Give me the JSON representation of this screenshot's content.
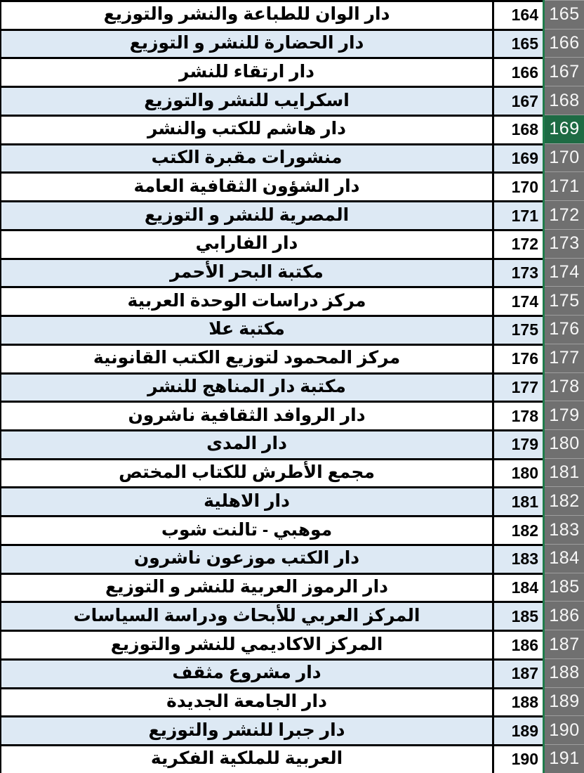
{
  "app": {
    "kind": "spreadsheet-worksheet",
    "direction": "rtl",
    "visible_row_headers_range": "165-191",
    "selected_row_header": "169"
  },
  "colors": {
    "band_blue": "#dde9f4",
    "cell_white": "#ffffff",
    "border_black": "#000000",
    "header_gray": "#707070",
    "header_separator": "#9e9e9e",
    "header_text": "#f7f7f7",
    "selected_header_green": "#1e6b44",
    "accent_line_green": "#1f7c4b"
  },
  "table": {
    "columns": [
      "publisher_name",
      "serial_number",
      "row_header"
    ],
    "rows": [
      {
        "name": "دار الوان للطباعة والنشر والتوزيع",
        "number": "164",
        "row_header": "165"
      },
      {
        "name": "دار الحضارة للنشر و التوزيع",
        "number": "165",
        "row_header": "166"
      },
      {
        "name": "دار ارتقاء للنشر",
        "number": "166",
        "row_header": "167"
      },
      {
        "name": "اسكرايب للنشر والتوزيع",
        "number": "167",
        "row_header": "168"
      },
      {
        "name": "دار هاشم للكتب والنشر",
        "number": "168",
        "row_header": "169"
      },
      {
        "name": "منشورات مقبرة الكتب",
        "number": "169",
        "row_header": "170"
      },
      {
        "name": "دار الشؤون الثقافية العامة",
        "number": "170",
        "row_header": "171"
      },
      {
        "name": "المصرية للنشر و التوزيع",
        "number": "171",
        "row_header": "172"
      },
      {
        "name": "دار الفارابي",
        "number": "172",
        "row_header": "173"
      },
      {
        "name": "مكتبة البحر الأحمر",
        "number": "173",
        "row_header": "174"
      },
      {
        "name": "مركز دراسات الوحدة العربية",
        "number": "174",
        "row_header": "175"
      },
      {
        "name": "مكتبة علا",
        "number": "175",
        "row_header": "176"
      },
      {
        "name": "مركز المحمود لتوزيع الكتب القانونية",
        "number": "176",
        "row_header": "177"
      },
      {
        "name": "مكتبة دار المناهج للنشر",
        "number": "177",
        "row_header": "178"
      },
      {
        "name": "دار الروافد الثقافية ناشرون",
        "number": "178",
        "row_header": "179"
      },
      {
        "name": "دار المدى",
        "number": "179",
        "row_header": "180"
      },
      {
        "name": "مجمع الأطرش للكتاب المختص",
        "number": "180",
        "row_header": "181"
      },
      {
        "name": "دار الاهلية",
        "number": "181",
        "row_header": "182"
      },
      {
        "name": "موهبي - تالنت شوب",
        "number": "182",
        "row_header": "183"
      },
      {
        "name": "دار الكتب موزعون ناشرون",
        "number": "183",
        "row_header": "184"
      },
      {
        "name": "دار الرموز العربية للنشر و التوزيع",
        "number": "184",
        "row_header": "185"
      },
      {
        "name": "المركز العربي للأبحاث ودراسة السياسات",
        "number": "185",
        "row_header": "186"
      },
      {
        "name": "المركز الاكاديمي للنشر والتوزيع",
        "number": "186",
        "row_header": "187"
      },
      {
        "name": "دار مشروع مثقف",
        "number": "187",
        "row_header": "188"
      },
      {
        "name": "دار الجامعة الجديدة",
        "number": "188",
        "row_header": "189"
      },
      {
        "name": "دار جبرا للنشر والتوزيع",
        "number": "189",
        "row_header": "190"
      },
      {
        "name": "العربية للملكية الفكرية",
        "number": "190",
        "row_header": "191"
      }
    ]
  }
}
